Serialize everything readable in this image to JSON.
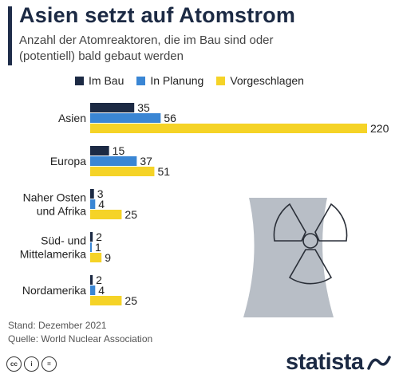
{
  "header": {
    "title": "Asien setzt auf Atomstrom",
    "subtitle": "Anzahl der Atomreaktoren, die im Bau sind oder (potentiell) bald gebaut werden"
  },
  "legend": [
    {
      "label": "Im Bau",
      "color": "#1c2a44"
    },
    {
      "label": "In Planung",
      "color": "#3a86d4"
    },
    {
      "label": "Vorgeschlagen",
      "color": "#f5d327"
    }
  ],
  "chart_data": {
    "type": "bar",
    "orientation": "horizontal",
    "categories": [
      "Asien",
      "Europa",
      "Naher Osten und Afrika",
      "Süd- und Mittelamerika",
      "Nordamerika"
    ],
    "category_lines": [
      [
        "Asien"
      ],
      [
        "Europa"
      ],
      [
        "Naher Osten",
        "und Afrika"
      ],
      [
        "Süd- und",
        "Mittelamerika"
      ],
      [
        "Nordamerika"
      ]
    ],
    "series": [
      {
        "name": "Im Bau",
        "color": "#1c2a44",
        "values": [
          35,
          15,
          3,
          2,
          2
        ]
      },
      {
        "name": "In Planung",
        "color": "#3a86d4",
        "values": [
          56,
          37,
          4,
          1,
          4
        ]
      },
      {
        "name": "Vorgeschlagen",
        "color": "#f5d327",
        "values": [
          220,
          51,
          25,
          9,
          25
        ]
      }
    ],
    "xlim": [
      0,
      220
    ],
    "grid": false,
    "legend_position": "top"
  },
  "footer": {
    "stand": "Stand: Dezember 2021",
    "quelle": "Quelle: World Nuclear Association"
  },
  "brand": {
    "name": "statista",
    "license_icons": [
      "cc-icon",
      "by-icon",
      "nd-icon"
    ]
  }
}
